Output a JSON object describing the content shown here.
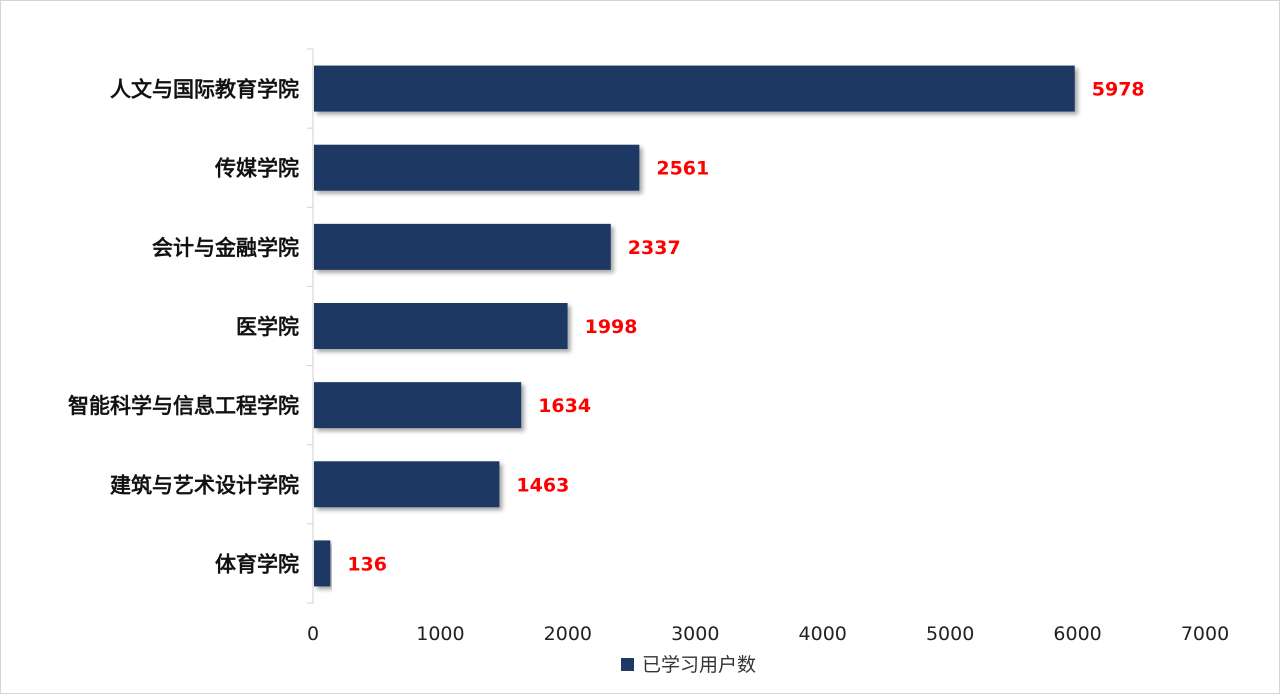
{
  "chart_data": {
    "type": "bar",
    "orientation": "horizontal",
    "categories": [
      "人文与国际教育学院",
      "传媒学院",
      "会计与金融学院",
      "医学院",
      "智能科学与信息工程学院",
      "建筑与艺术设计学院",
      "体育学院"
    ],
    "series": [
      {
        "name": "已学习用户数",
        "values": [
          5978,
          2561,
          2337,
          1998,
          1634,
          1463,
          136
        ],
        "color": "#1f3864"
      }
    ],
    "data_label_color": "#ff0000",
    "xlim": [
      0,
      7000
    ],
    "x_ticks": [
      0,
      1000,
      2000,
      3000,
      4000,
      5000,
      6000,
      7000
    ],
    "grid": false,
    "legend_position": "bottom"
  }
}
